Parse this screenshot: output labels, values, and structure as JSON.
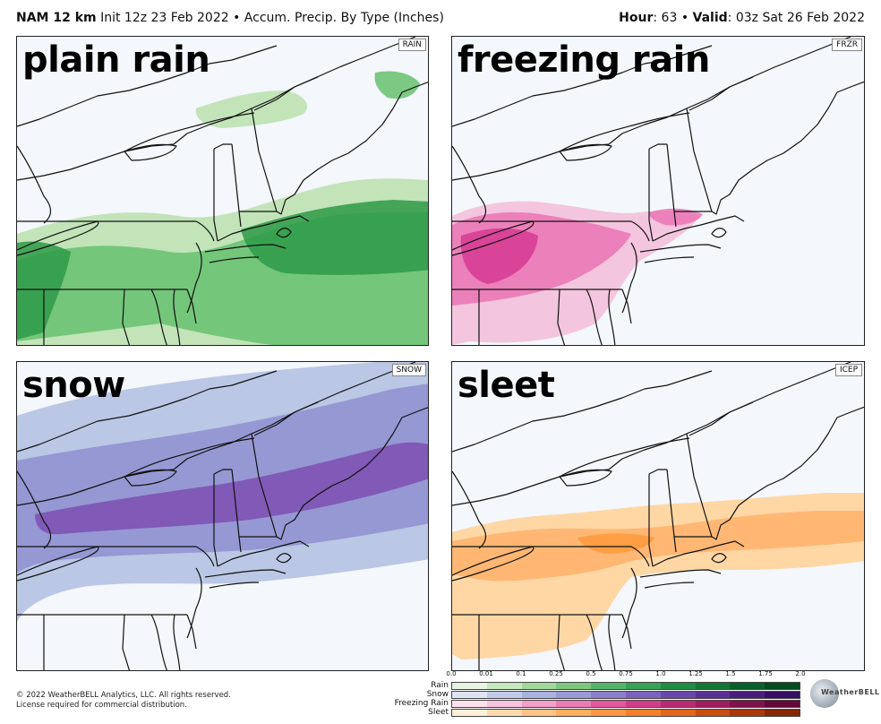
{
  "header": {
    "model": "NAM 12 km",
    "init": " Init 12z 23 Feb 2022 • Accum. Precip. By Type (Inches)",
    "hour_label": "Hour",
    "hour_value": ": 63 • ",
    "valid_label": "Valid",
    "valid_value": ": 03z Sat 26 Feb 2022"
  },
  "panels": [
    {
      "label": "plain rain",
      "code": "RAIN",
      "color_light": "#bfe3b4",
      "color_mid": "#66c16e",
      "color_dark": "#2e9a48"
    },
    {
      "label": "freezing rain",
      "code": "FRZR",
      "color_light": "#f3c2dc",
      "color_mid": "#ea73b5",
      "color_dark": "#d63a93"
    },
    {
      "label": "snow",
      "code": "SNOW",
      "color_light": "#b6c4e4",
      "color_mid": "#8f8fd1",
      "color_dark": "#7d4fb0"
    },
    {
      "label": "sleet",
      "code": "ICEP",
      "color_light": "#ffd5a0",
      "color_mid": "#ffb26a",
      "color_dark": "#ff9a3c"
    }
  ],
  "legend": {
    "ticks": [
      "0.0",
      "0.01",
      "0.1",
      "0.25",
      "0.5",
      "0.75",
      "1.0",
      "1.25",
      "1.5",
      "1.75",
      "2.0"
    ],
    "rows": [
      {
        "label": "Rain",
        "colors": [
          "#e6f4e1",
          "#c6e8bd",
          "#a2d89a",
          "#7cc77c",
          "#56b466",
          "#37a155",
          "#1f8c44",
          "#127636",
          "#0a602a",
          "#054b20"
        ]
      },
      {
        "label": "Snow",
        "colors": [
          "#dfe4f3",
          "#c1cbe8",
          "#a9b3de",
          "#9a9ad6",
          "#8b7fcb",
          "#7c63bd",
          "#6b47ab",
          "#5a2f96",
          "#481d7d",
          "#360f63"
        ]
      },
      {
        "label": "Freezing Rain",
        "colors": [
          "#fbe1ee",
          "#f7c3df",
          "#f29fcb",
          "#ec7cb6",
          "#e3589e",
          "#d33d88",
          "#bb2a73",
          "#9f1d5f",
          "#80124b",
          "#640938"
        ]
      },
      {
        "label": "Sleet",
        "colors": [
          "#ffefd8",
          "#ffd9ad",
          "#ffc384",
          "#ffad60",
          "#ff9744",
          "#f57f2b",
          "#e2661c",
          "#c94e12",
          "#a9390b",
          "#862705"
        ]
      }
    ]
  },
  "footer": {
    "line1": "© 2022 WeatherBELL Analytics, LLC. All rights reserved.",
    "line2": "License required for commercial distribution."
  },
  "logo": {
    "text": "WeatherBELL"
  }
}
